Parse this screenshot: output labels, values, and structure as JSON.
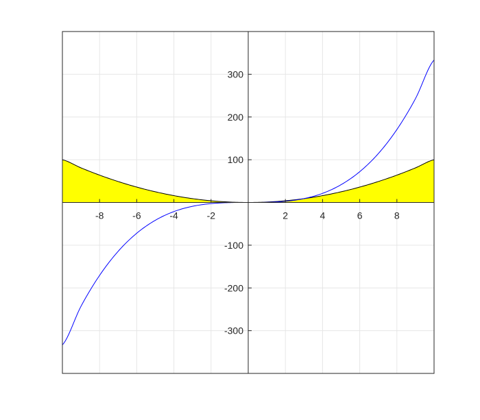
{
  "chart_data": {
    "type": "line",
    "title": "",
    "xlabel": "",
    "ylabel": "",
    "xlim": [
      -10,
      10
    ],
    "ylim": [
      -400,
      400
    ],
    "grid": true,
    "axis_location": "origin",
    "x_ticks": [
      -8,
      -6,
      -4,
      -2,
      2,
      4,
      6,
      8
    ],
    "x_tick_labels": [
      "-8",
      "-6",
      "-4",
      "-2",
      "2",
      "4",
      "6",
      "8"
    ],
    "y_ticks": [
      -300,
      -200,
      -100,
      100,
      200,
      300
    ],
    "y_tick_labels": [
      "-300",
      "-200",
      "-100",
      "100",
      "200",
      "300"
    ],
    "x_step_ticks": [
      -10,
      -8,
      -6,
      -4,
      -2,
      0,
      2,
      4,
      6,
      8,
      10
    ],
    "y_step_ticks": [
      -400,
      -300,
      -200,
      -100,
      0,
      100,
      200,
      300,
      400
    ],
    "series": [
      {
        "kind": "line",
        "color": "#0000ff",
        "x": [
          -10,
          -9,
          -8,
          -7,
          -6,
          -5,
          -4,
          -3,
          -2,
          -1,
          0,
          1,
          2,
          3,
          4,
          5,
          6,
          7,
          8,
          9,
          10
        ],
        "y": [
          -333.3,
          -243,
          -170.7,
          -114.3,
          -72,
          -41.7,
          -21.3,
          -9,
          -2.7,
          -0.3,
          0,
          0.3,
          2.7,
          9,
          21.3,
          41.7,
          72,
          114.3,
          170.7,
          243,
          333.3
        ]
      },
      {
        "kind": "area",
        "color": "#ffff00",
        "edge_color": "#000000",
        "x": [
          -10,
          -9,
          -8,
          -7,
          -6,
          -5,
          -4,
          -3,
          -2,
          -1,
          0,
          1,
          2,
          3,
          4,
          5,
          6,
          7,
          8,
          9,
          10
        ],
        "y": [
          100,
          81,
          64,
          49,
          36,
          25,
          16,
          9,
          4,
          1,
          0,
          1,
          4,
          9,
          16,
          25,
          36,
          49,
          64,
          81,
          100
        ]
      }
    ]
  },
  "colors": {
    "background": "#ffffff",
    "grid": "#e6e6e6",
    "axes": "#262626",
    "tick_text": "#262626"
  }
}
